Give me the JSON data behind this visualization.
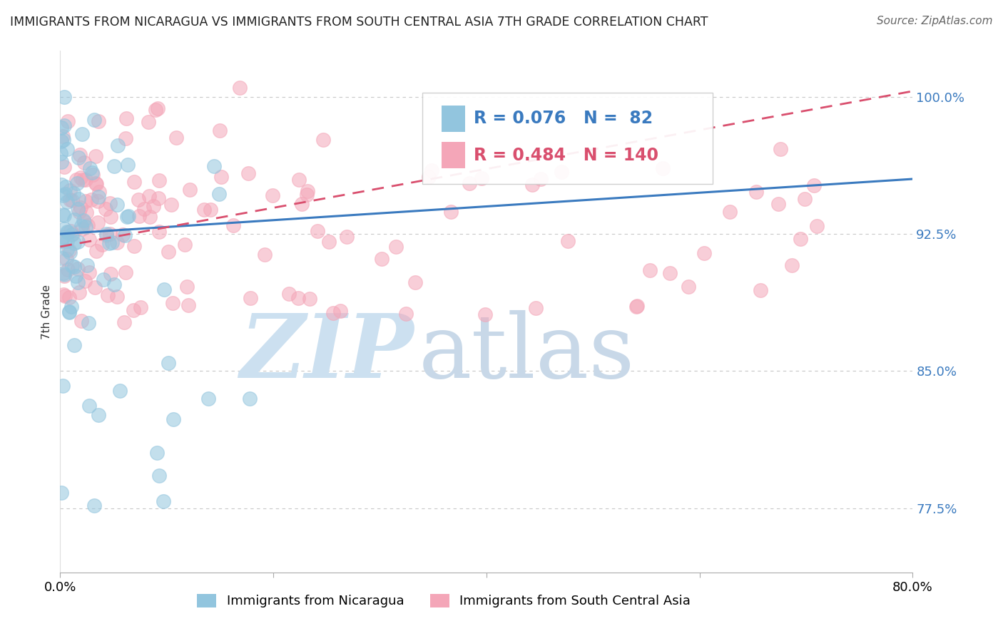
{
  "title": "IMMIGRANTS FROM NICARAGUA VS IMMIGRANTS FROM SOUTH CENTRAL ASIA 7TH GRADE CORRELATION CHART",
  "source": "Source: ZipAtlas.com",
  "ylabel": "7th Grade",
  "x_lim": [
    0.0,
    80.0
  ],
  "y_lim": [
    74.0,
    102.5
  ],
  "legend_blue_label": "Immigrants from Nicaragua",
  "legend_pink_label": "Immigrants from South Central Asia",
  "R_blue": 0.076,
  "N_blue": 82,
  "R_pink": 0.484,
  "N_pink": 140,
  "blue_color": "#92c5de",
  "pink_color": "#f4a6b8",
  "blue_line_color": "#3a7abf",
  "pink_line_color": "#d94f6e",
  "watermark_zip_color": "#cce0f0",
  "watermark_atlas_color": "#c8d8e8",
  "background_color": "#ffffff",
  "y_tick_vals": [
    77.5,
    85.0,
    92.5,
    100.0
  ],
  "y_tick_labels": [
    "77.5%",
    "85.0%",
    "92.5%",
    "100.0%"
  ],
  "blue_trend_x": [
    0,
    80
  ],
  "blue_trend_y": [
    92.5,
    95.5
  ],
  "pink_trend_x": [
    0,
    80
  ],
  "pink_trend_y": [
    91.8,
    100.3
  ],
  "seed_blue": 42,
  "seed_pink": 77
}
